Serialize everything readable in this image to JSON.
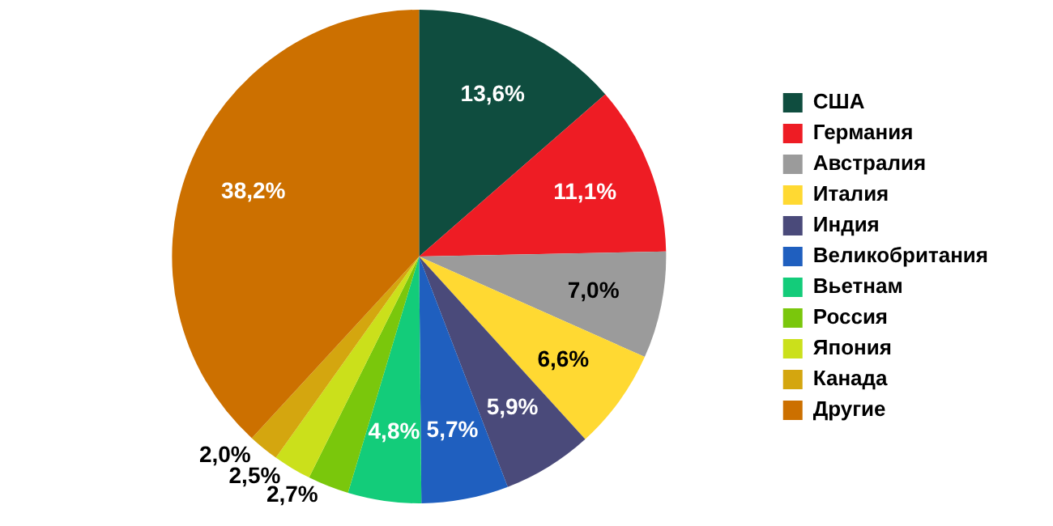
{
  "chart_data": {
    "type": "pie",
    "categories": [
      "США",
      "Германия",
      "Австралия",
      "Италия",
      "Индия",
      "Великобритания",
      "Вьетнам",
      "Россия",
      "Япония",
      "Канада",
      "Другие"
    ],
    "values": [
      13.6,
      11.1,
      7.0,
      6.6,
      5.9,
      5.7,
      4.8,
      2.7,
      2.5,
      2.0,
      38.2
    ],
    "value_labels": [
      "13,6%",
      "11,1%",
      "7,0%",
      "6,6%",
      "5,9%",
      "5,7%",
      "4,8%",
      "2,7%",
      "2,5%",
      "2,0%",
      "38,2%"
    ],
    "colors": [
      "#0f4d3f",
      "#ee1c24",
      "#9b9b9b",
      "#ffd932",
      "#4a4a7a",
      "#1f5fbf",
      "#13cc7a",
      "#7ac70c",
      "#cbe01b",
      "#d4a60f",
      "#cc7000"
    ],
    "legend": "right"
  }
}
